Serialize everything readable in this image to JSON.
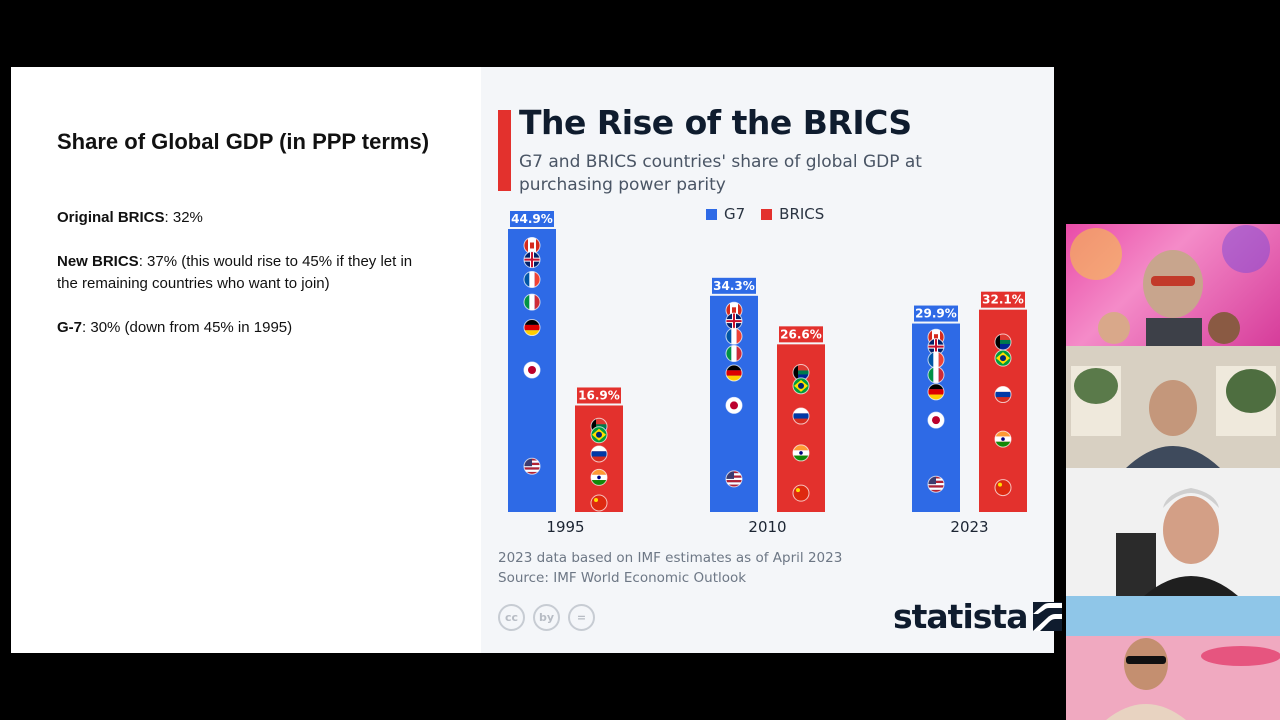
{
  "slide": {
    "title": "Share of Global GDP (in PPP terms)",
    "bullets": [
      {
        "label": "Original BRICS",
        "text": ": 32%"
      },
      {
        "label": "New BRICS",
        "text": ": 37% (this would rise to 45% if they let in the remaining countries who want to join)"
      },
      {
        "label": "G-7",
        "text": ": 30% (down from 45% in 1995)"
      }
    ]
  },
  "infographic": {
    "title": "The Rise of the BRICS",
    "subtitle": "G7 and BRICS countries' share of global GDP at purchasing power parity",
    "footnote_1": "2023 data based on IMF estimates as of April 2023",
    "footnote_2": "Source: IMF World Economic Outlook",
    "cc_icons": [
      "cc",
      "by",
      "="
    ],
    "brand": "statista",
    "colors": {
      "g7": "#2e6ae6",
      "brics": "#e3312d"
    }
  },
  "chart_data": {
    "type": "bar",
    "categories": [
      "1995",
      "2010",
      "2023"
    ],
    "series": [
      {
        "name": "G7",
        "values": [
          44.9,
          34.3,
          29.9
        ],
        "labels": [
          "44.9%",
          "34.3%",
          "29.9%"
        ]
      },
      {
        "name": "BRICS",
        "values": [
          16.9,
          26.6,
          32.1
        ],
        "labels": [
          "16.9%",
          "26.6%",
          "32.1%"
        ]
      }
    ],
    "ylim": [
      0,
      45
    ],
    "legend": "top",
    "flags_g7": [
      "canada",
      "uk",
      "france",
      "italy",
      "germany",
      "japan",
      "usa"
    ],
    "flags_brics": [
      "south-africa",
      "brazil",
      "russia",
      "india",
      "china"
    ]
  }
}
